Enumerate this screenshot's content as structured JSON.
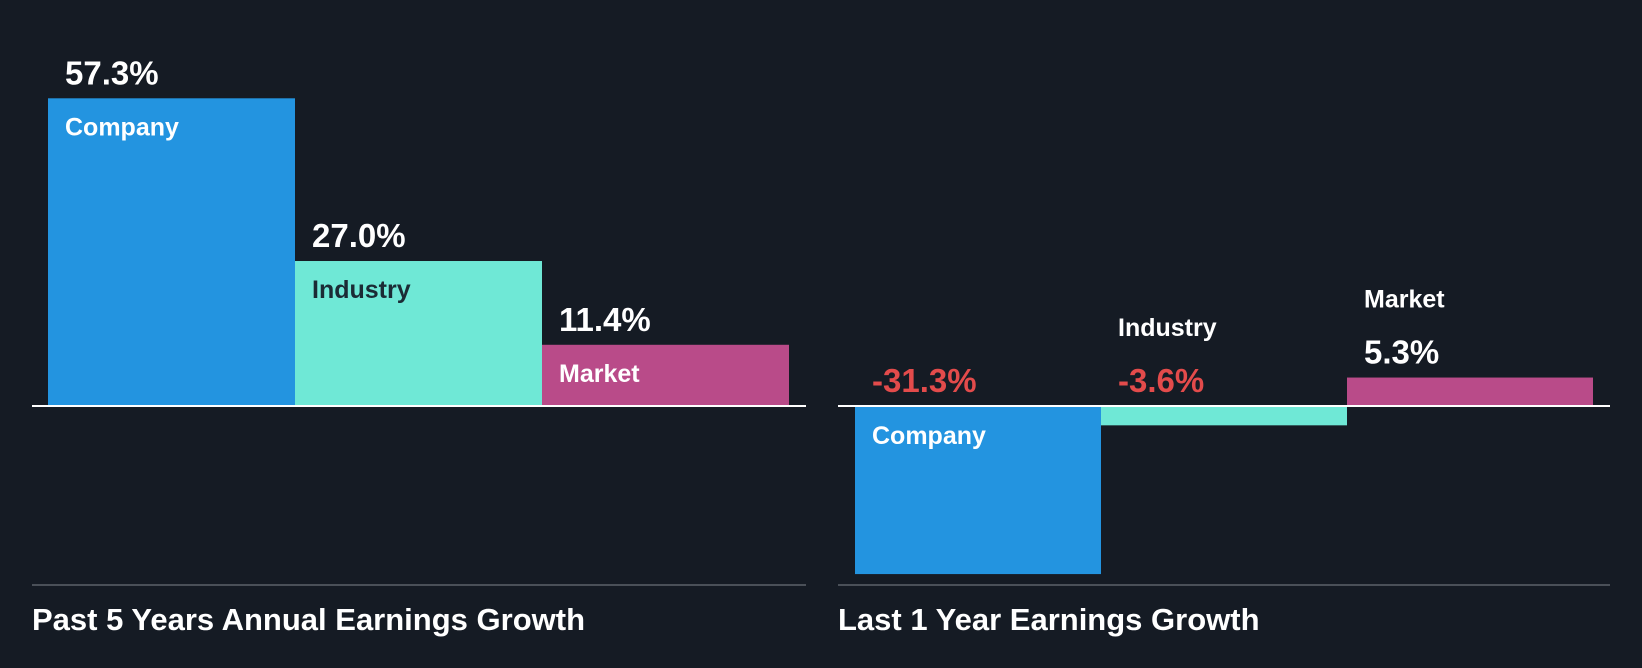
{
  "chart_data": [
    {
      "type": "bar",
      "title": "Past 5 Years Annual Earnings Growth",
      "categories": [
        "Company",
        "Industry",
        "Market"
      ],
      "values": [
        57.3,
        27.0,
        11.4
      ],
      "value_labels": [
        "57.3%",
        "27.0%",
        "11.4%"
      ],
      "colors": [
        "#2394e0",
        "#6fe8d6",
        "#b94b89"
      ],
      "grid": false,
      "legend": "none"
    },
    {
      "type": "bar",
      "title": "Last 1 Year Earnings Growth",
      "categories": [
        "Company",
        "Industry",
        "Market"
      ],
      "values": [
        -31.3,
        -3.6,
        5.3
      ],
      "value_labels": [
        "-31.3%",
        "-3.6%",
        "5.3%"
      ],
      "colors": [
        "#2394e0",
        "#6fe8d6",
        "#b94b89"
      ],
      "grid": false,
      "legend": "none"
    }
  ],
  "theme": {
    "background": "#151b24",
    "text": "#ffffff",
    "negative_text": "#e34b4b",
    "dark_label_text": "#1b2b35",
    "baseline": "#ffffff",
    "bottom_rule": "#4a5058"
  }
}
